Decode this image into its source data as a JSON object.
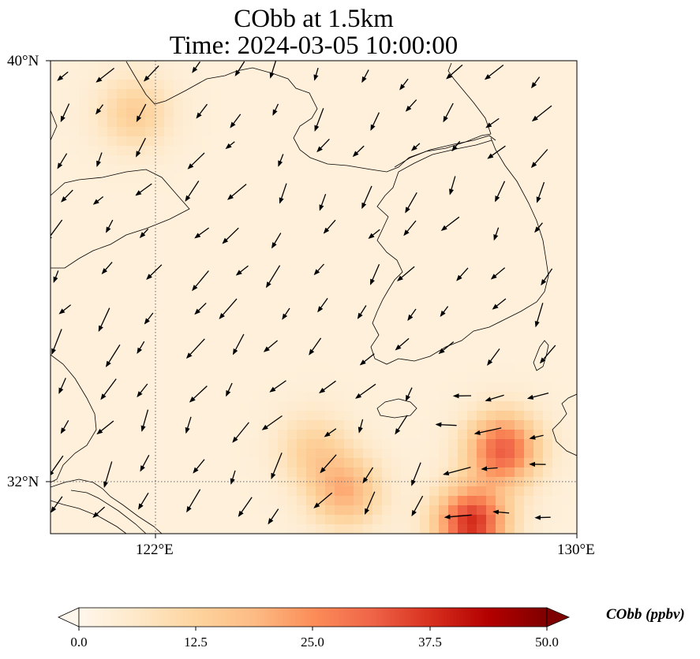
{
  "figure": {
    "title_line1": "CObb at 1.5km",
    "title_line2": "Time: 2024-03-05 10:00:00"
  },
  "axes": {
    "lat_labels": [
      "40°N",
      "32°N"
    ],
    "lon_labels": [
      "122°E",
      "130°E"
    ],
    "gridlines": "dotted at 122°E and 32°N"
  },
  "colorbar": {
    "label": "CObb (ppbv)",
    "cmap": "OrRd",
    "colors": [
      "#fff7ec",
      "#fee8c8",
      "#fdd49e",
      "#fdbb84",
      "#fc8d59",
      "#ef6548",
      "#d7301f",
      "#b30000",
      "#7f0000"
    ],
    "ticks": [
      "0.0",
      "12.5",
      "25.0",
      "37.5",
      "50.0"
    ],
    "extend": "both"
  },
  "chart_data": {
    "type": "heatmap",
    "title": "CObb at 1.5km\nTime: 2024-03-05 10:00:00",
    "variable": "CObb",
    "units": "ppbv",
    "level": "1.5km",
    "time": "2024-03-05 10:00:00",
    "lon_range": [
      120,
      130
    ],
    "lat_range": [
      31,
      40
    ],
    "value_range": [
      0,
      50
    ],
    "overlay": "wind vectors",
    "hotspots": [
      {
        "lon": 121.6,
        "lat": 39.0,
        "value": 14
      },
      {
        "lon": 128.6,
        "lat": 32.6,
        "value": 32
      },
      {
        "lon": 128.0,
        "lat": 31.2,
        "value": 38
      },
      {
        "lon": 125.6,
        "lat": 31.8,
        "value": 20
      },
      {
        "lon": 125.0,
        "lat": 32.6,
        "value": 13
      }
    ],
    "background_value": 3
  }
}
